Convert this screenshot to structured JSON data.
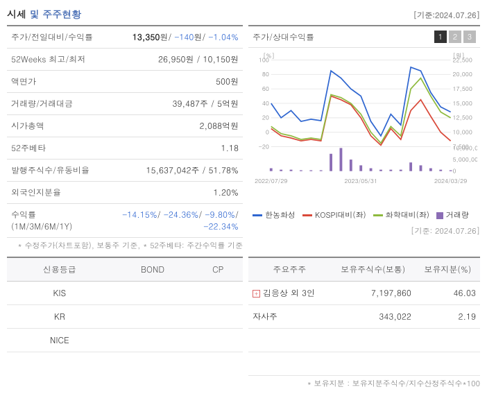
{
  "header": {
    "title_black": "시세",
    "title_blue": "및 주주현황",
    "basis_date": "[기준:2024.07.26]"
  },
  "stats": {
    "rows": [
      {
        "label": "주가/전일대비/수익률",
        "value_html": "<span class='price-bold'>13,350</span>원/ <span class='blue-txt'>-140</span>원/ <span class='blue-txt'>-1.04%</span>"
      },
      {
        "label": "52Weeks 최고/최저",
        "value_html": "26,950원 / 10,150원"
      },
      {
        "label": "액면가",
        "value_html": "500원"
      },
      {
        "label": "거래량/거래대금",
        "value_html": "39,487주 / 5억원"
      },
      {
        "label": "시가총액",
        "value_html": "2,088억원"
      },
      {
        "label": "52주베타",
        "value_html": "1.18"
      },
      {
        "label": "발행주식수/유동비율",
        "value_html": "15,637,042주 / 51.78%"
      },
      {
        "label": "외국인지분율",
        "value_html": "1.20%"
      },
      {
        "label": "수익률 (1M/3M/6M/1Y)",
        "value_html": "<span class='blue-txt'>-14.15%</span>/ <span class='blue-txt'>-24.36%</span>/ <span class='blue-txt'>-9.80%</span>/ <span class='blue-txt'>-22.34%</span>"
      }
    ],
    "footnote": "* 수정주가(차트포함), 보통주 기준, * 52주베타: 주간수익률 기준"
  },
  "chart": {
    "title": "주가/상대수익률",
    "tabs": [
      "1",
      "2",
      "3"
    ],
    "active_tab": 0,
    "basis_date": "[기준: 2024.07.26]",
    "type": "line-with-bars",
    "left_axis": {
      "label": "[%]",
      "min": -20,
      "max": 100,
      "ticks": [
        -20,
        0,
        20,
        40,
        60,
        80,
        100
      ]
    },
    "right_axis": {
      "label": "[원]",
      "min": 7500,
      "max": 22500,
      "ticks": [
        7500,
        10000,
        12500,
        15000,
        17500,
        20000,
        22500
      ]
    },
    "volume_axis": {
      "ticks": [
        "0",
        "5,000,000",
        "10,000,000"
      ]
    },
    "x_labels": [
      "2022/07/29",
      "2023/05/31",
      "2024/03/29"
    ],
    "background_color": "#ffffff",
    "grid_color": "#e8e8e8",
    "line_width": 1.8,
    "series": [
      {
        "name": "한농화성",
        "color": "#2f66d0",
        "values": [
          40,
          20,
          30,
          15,
          18,
          16,
          85,
          75,
          60,
          50,
          15,
          -5,
          25,
          10,
          90,
          85,
          55,
          35,
          28
        ]
      },
      {
        "name": "KOSPI대비(좌)",
        "color": "#d94a3a",
        "values": [
          5,
          -5,
          -8,
          -12,
          -10,
          -12,
          50,
          45,
          38,
          20,
          -5,
          -18,
          5,
          -10,
          30,
          45,
          22,
          0,
          -12
        ]
      },
      {
        "name": "화학대비(좌)",
        "color": "#8eba3e",
        "values": [
          8,
          -2,
          -5,
          -10,
          -8,
          -10,
          52,
          48,
          40,
          25,
          0,
          -15,
          8,
          -5,
          60,
          75,
          50,
          28,
          20
        ]
      }
    ],
    "volume": {
      "name": "거래량",
      "color": "#8b6db5",
      "values": [
        1,
        0.5,
        0.5,
        0.3,
        0.3,
        0.3,
        6,
        8,
        4,
        2,
        1,
        0.5,
        0.5,
        0.5,
        3,
        2,
        1,
        0.5,
        0.3
      ]
    }
  },
  "rating_table": {
    "headers": [
      "신용등급",
      "BOND",
      "CP"
    ],
    "rows": [
      [
        "KIS",
        "",
        ""
      ],
      [
        "KR",
        "",
        ""
      ],
      [
        "NICE",
        "",
        ""
      ]
    ]
  },
  "holders_table": {
    "headers": [
      "주요주주",
      "보유주식수(보통)",
      "보유지분(%)"
    ],
    "rows": [
      {
        "name": "김응상 외 3인",
        "shares": "7,197,860",
        "pct": "46.03",
        "expandable": true
      },
      {
        "name": "자사주",
        "shares": "343,022",
        "pct": "2.19",
        "expandable": false
      }
    ],
    "footnote": "* 보유지분 : 보유지분주식수/지수산정주식수*100"
  }
}
